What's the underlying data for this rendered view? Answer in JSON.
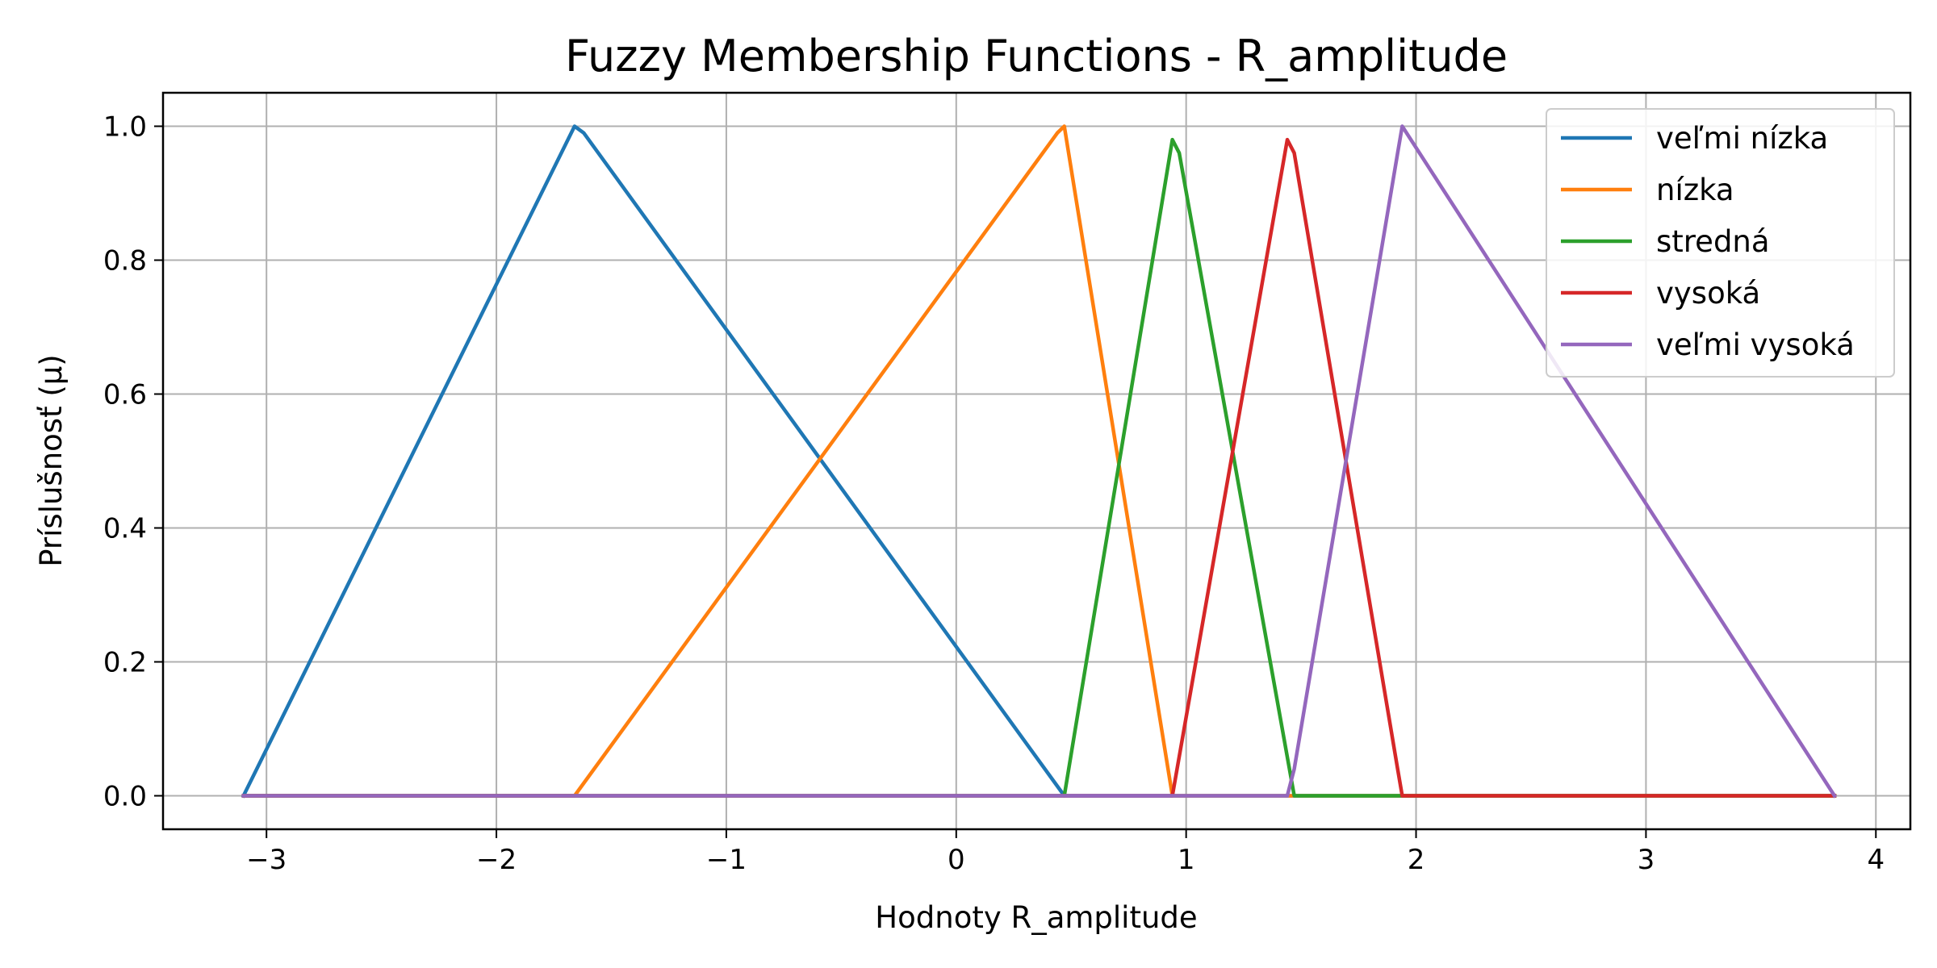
{
  "chart_data": {
    "type": "line",
    "title": "Fuzzy Membership Functions - R_amplitude",
    "xlabel": "Hodnoty R_amplitude",
    "ylabel": "Príslušnosť (μ)",
    "xlim": [
      -3.45,
      4.15
    ],
    "ylim": [
      -0.05,
      1.05
    ],
    "xticks": [
      -3,
      -2,
      -1,
      0,
      1,
      2,
      3,
      4
    ],
    "xtick_labels": [
      "−3",
      "−2",
      "−1",
      "0",
      "1",
      "2",
      "3",
      "4"
    ],
    "yticks": [
      0.0,
      0.2,
      0.4,
      0.6,
      0.8,
      1.0
    ],
    "ytick_labels": [
      "0.0",
      "0.2",
      "0.4",
      "0.6",
      "0.8",
      "1.0"
    ],
    "grid": true,
    "legend_position": "top-right",
    "series": [
      {
        "name": "veľmi nízka",
        "color": "#1f77b4",
        "points": [
          [
            -3.1,
            0.0
          ],
          [
            -1.66,
            1.0
          ],
          [
            -1.62,
            0.99
          ],
          [
            0.47,
            0.0
          ],
          [
            0.5,
            0.0
          ],
          [
            3.82,
            0.0
          ]
        ]
      },
      {
        "name": "nízka",
        "color": "#ff7f0e",
        "points": [
          [
            -3.1,
            0.0
          ],
          [
            -1.66,
            0.0
          ],
          [
            0.44,
            0.99
          ],
          [
            0.47,
            1.0
          ],
          [
            0.94,
            0.0
          ],
          [
            0.97,
            0.0
          ],
          [
            3.82,
            0.0
          ]
        ]
      },
      {
        "name": "stredná",
        "color": "#2ca02c",
        "points": [
          [
            -3.1,
            0.0
          ],
          [
            0.47,
            0.0
          ],
          [
            0.94,
            0.98
          ],
          [
            0.97,
            0.96
          ],
          [
            1.47,
            0.0
          ],
          [
            1.94,
            0.0
          ],
          [
            3.82,
            0.0
          ]
        ]
      },
      {
        "name": "vysoká",
        "color": "#d62728",
        "points": [
          [
            -3.1,
            0.0
          ],
          [
            0.94,
            0.0
          ],
          [
            1.44,
            0.98
          ],
          [
            1.47,
            0.96
          ],
          [
            1.92,
            0.04
          ],
          [
            1.94,
            0.0
          ],
          [
            3.82,
            0.0
          ]
        ]
      },
      {
        "name": "veľmi vysoká",
        "color": "#9467bd",
        "points": [
          [
            -3.1,
            0.0
          ],
          [
            1.44,
            0.0
          ],
          [
            1.47,
            0.04
          ],
          [
            1.92,
            0.96
          ],
          [
            1.94,
            1.0
          ],
          [
            3.82,
            0.0
          ]
        ]
      }
    ]
  }
}
